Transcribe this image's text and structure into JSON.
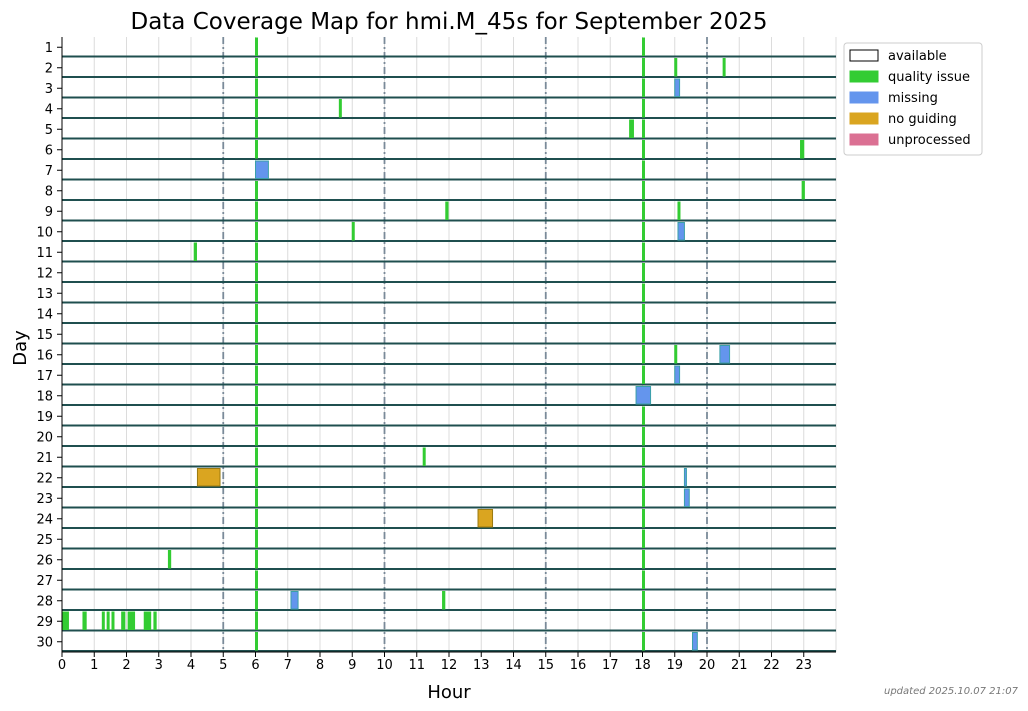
{
  "chart_data": {
    "type": "heatmap",
    "title": "Data Coverage Map for hmi.M_45s for September 2025",
    "xlabel": "Hour",
    "ylabel": "Day",
    "xlim": [
      0,
      24
    ],
    "xticks": [
      "0",
      "1",
      "2",
      "3",
      "4",
      "5",
      "6",
      "7",
      "8",
      "9",
      "10",
      "11",
      "12",
      "13",
      "14",
      "15",
      "16",
      "17",
      "18",
      "19",
      "20",
      "21",
      "22",
      "23"
    ],
    "days": [
      "1",
      "2",
      "3",
      "4",
      "5",
      "6",
      "7",
      "8",
      "9",
      "10",
      "11",
      "12",
      "13",
      "14",
      "15",
      "16",
      "17",
      "18",
      "19",
      "20",
      "21",
      "22",
      "23",
      "24",
      "25",
      "26",
      "27",
      "28",
      "29",
      "30"
    ],
    "grid": true,
    "marked_hours": [
      5,
      10,
      15,
      20
    ],
    "legend_position": "top-right",
    "categories": [
      {
        "key": "available",
        "label": "available",
        "color": "#ffffff"
      },
      {
        "key": "quality",
        "label": "quality issue",
        "color": "#33cc33"
      },
      {
        "key": "missing",
        "label": "missing",
        "color": "#6495ed"
      },
      {
        "key": "noguide",
        "label": "no guiding",
        "color": "#daa520"
      },
      {
        "key": "unproc",
        "label": "unprocessed",
        "color": "#db7093"
      }
    ],
    "all_days_segments": [
      {
        "start": 6.0,
        "end": 6.06,
        "status": "quality"
      },
      {
        "start": 18.0,
        "end": 18.06,
        "status": "quality"
      }
    ],
    "segments": [
      {
        "day": 2,
        "start": 19.0,
        "end": 19.06,
        "status": "quality"
      },
      {
        "day": 2,
        "start": 20.5,
        "end": 20.56,
        "status": "quality"
      },
      {
        "day": 3,
        "start": 19.0,
        "end": 19.15,
        "status": "missing"
      },
      {
        "day": 4,
        "start": 8.6,
        "end": 8.66,
        "status": "quality"
      },
      {
        "day": 5,
        "start": 17.6,
        "end": 17.72,
        "status": "quality"
      },
      {
        "day": 6,
        "start": 22.9,
        "end": 23.0,
        "status": "quality"
      },
      {
        "day": 7,
        "start": 6.0,
        "end": 6.4,
        "status": "missing"
      },
      {
        "day": 8,
        "start": 22.95,
        "end": 23.02,
        "status": "quality"
      },
      {
        "day": 9,
        "start": 11.9,
        "end": 11.97,
        "status": "quality"
      },
      {
        "day": 9,
        "start": 19.1,
        "end": 19.16,
        "status": "quality"
      },
      {
        "day": 10,
        "start": 9.0,
        "end": 9.06,
        "status": "quality"
      },
      {
        "day": 10,
        "start": 19.1,
        "end": 19.3,
        "status": "missing"
      },
      {
        "day": 11,
        "start": 4.1,
        "end": 4.17,
        "status": "quality"
      },
      {
        "day": 16,
        "start": 19.0,
        "end": 19.06,
        "status": "quality"
      },
      {
        "day": 16,
        "start": 20.4,
        "end": 20.7,
        "status": "missing"
      },
      {
        "day": 17,
        "start": 19.0,
        "end": 19.15,
        "status": "missing"
      },
      {
        "day": 18,
        "start": 17.8,
        "end": 18.25,
        "status": "missing"
      },
      {
        "day": 21,
        "start": 11.2,
        "end": 11.26,
        "status": "quality"
      },
      {
        "day": 22,
        "start": 4.2,
        "end": 4.9,
        "status": "noguide"
      },
      {
        "day": 22,
        "start": 19.3,
        "end": 19.35,
        "status": "missing"
      },
      {
        "day": 23,
        "start": 19.3,
        "end": 19.45,
        "status": "missing"
      },
      {
        "day": 24,
        "start": 12.9,
        "end": 13.35,
        "status": "noguide"
      },
      {
        "day": 26,
        "start": 3.3,
        "end": 3.37,
        "status": "quality"
      },
      {
        "day": 28,
        "start": 7.1,
        "end": 7.32,
        "status": "missing"
      },
      {
        "day": 28,
        "start": 11.8,
        "end": 11.87,
        "status": "quality"
      },
      {
        "day": 29,
        "start": 0.0,
        "end": 0.2,
        "status": "quality"
      },
      {
        "day": 29,
        "start": 0.65,
        "end": 0.75,
        "status": "quality"
      },
      {
        "day": 29,
        "start": 1.25,
        "end": 1.3,
        "status": "quality"
      },
      {
        "day": 29,
        "start": 1.4,
        "end": 1.45,
        "status": "quality"
      },
      {
        "day": 29,
        "start": 1.55,
        "end": 1.6,
        "status": "quality"
      },
      {
        "day": 29,
        "start": 1.85,
        "end": 1.95,
        "status": "quality"
      },
      {
        "day": 29,
        "start": 2.05,
        "end": 2.25,
        "status": "quality"
      },
      {
        "day": 29,
        "start": 2.55,
        "end": 2.75,
        "status": "quality"
      },
      {
        "day": 29,
        "start": 2.85,
        "end": 2.92,
        "status": "quality"
      },
      {
        "day": 30,
        "start": 19.55,
        "end": 19.7,
        "status": "missing"
      }
    ]
  },
  "footer": {
    "updated": "updated 2025.10.07 21:07"
  }
}
